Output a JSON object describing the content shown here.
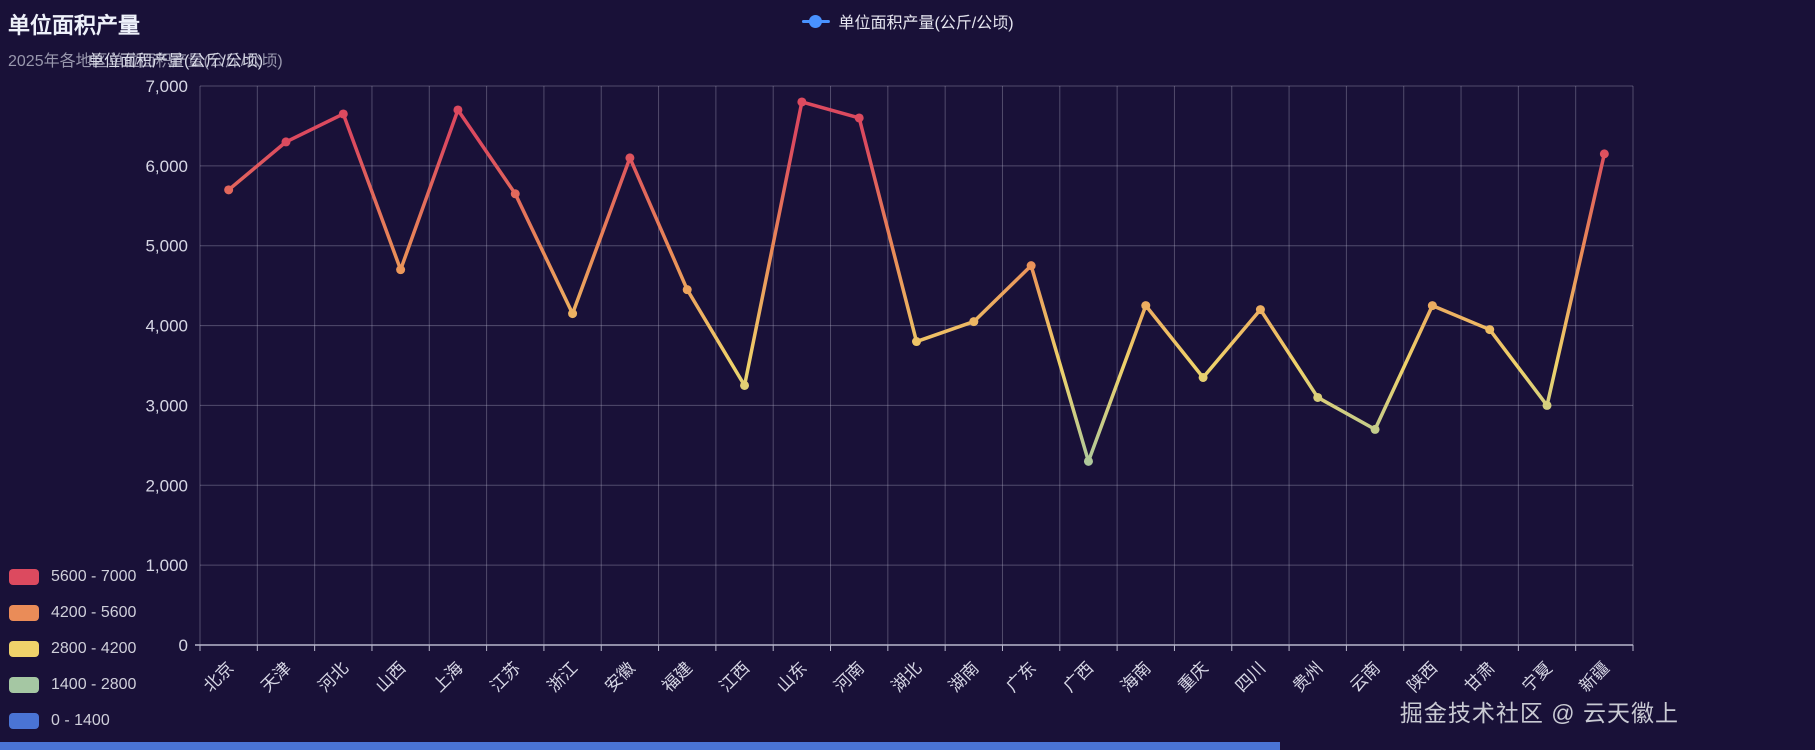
{
  "title": "单位面积产量",
  "subtitle": "2025年各地区单位面积产量(公斤/公顷)",
  "legend": {
    "label": "单位面积产量(公斤/公顷)",
    "color": "#4992ff"
  },
  "watermark": "掘金技术社区 @ 云天徽上",
  "colors": {
    "background": "#191138",
    "grid_line": "rgba(185,184,206,0.35)",
    "axis_line": "#b9b8ce",
    "axis_label": "#d6d6e4",
    "scrollbar": "#4a74d4"
  },
  "chart_data": {
    "type": "line",
    "title": "单位面积产量",
    "subtitle": "2025年各地区单位面积产量(公斤/公顷)",
    "xlabel": "",
    "ylabel": "单位面积产量(公斤/公顷)",
    "ylim": [
      0,
      7000
    ],
    "y_ticks": [
      0,
      1000,
      2000,
      3000,
      4000,
      5000,
      6000,
      7000
    ],
    "grid": true,
    "legend_position": "top-center",
    "categories": [
      "北京",
      "天津",
      "河北",
      "山西",
      "上海",
      "江苏",
      "浙江",
      "安徽",
      "福建",
      "江西",
      "山东",
      "河南",
      "湖北",
      "湖南",
      "广东",
      "广西",
      "海南",
      "重庆",
      "四川",
      "贵州",
      "云南",
      "陕西",
      "甘肃",
      "宁夏",
      "新疆"
    ],
    "series": [
      {
        "name": "单位面积产量(公斤/公顷)",
        "values": [
          5700,
          6300,
          6650,
          4700,
          6700,
          5650,
          4150,
          6100,
          4450,
          3250,
          6800,
          6600,
          3800,
          4050,
          4750,
          2300,
          4250,
          3350,
          4200,
          3100,
          2700,
          4250,
          3950,
          3000,
          6150
        ]
      }
    ],
    "visual_map_pieces": [
      {
        "label": "5600 - 7000",
        "min": 5600,
        "max": 7000,
        "color": "#dc4a5f"
      },
      {
        "label": "4200 - 5600",
        "min": 4200,
        "max": 5600,
        "color": "#ea8c58"
      },
      {
        "label": "2800 - 4200",
        "min": 2800,
        "max": 4200,
        "color": "#efd26a"
      },
      {
        "label": "1400 - 2800",
        "min": 1400,
        "max": 2800,
        "color": "#a5c7a3"
      },
      {
        "label": "0 - 1400",
        "min": 0,
        "max": 1400,
        "color": "#4a74d4"
      }
    ]
  }
}
